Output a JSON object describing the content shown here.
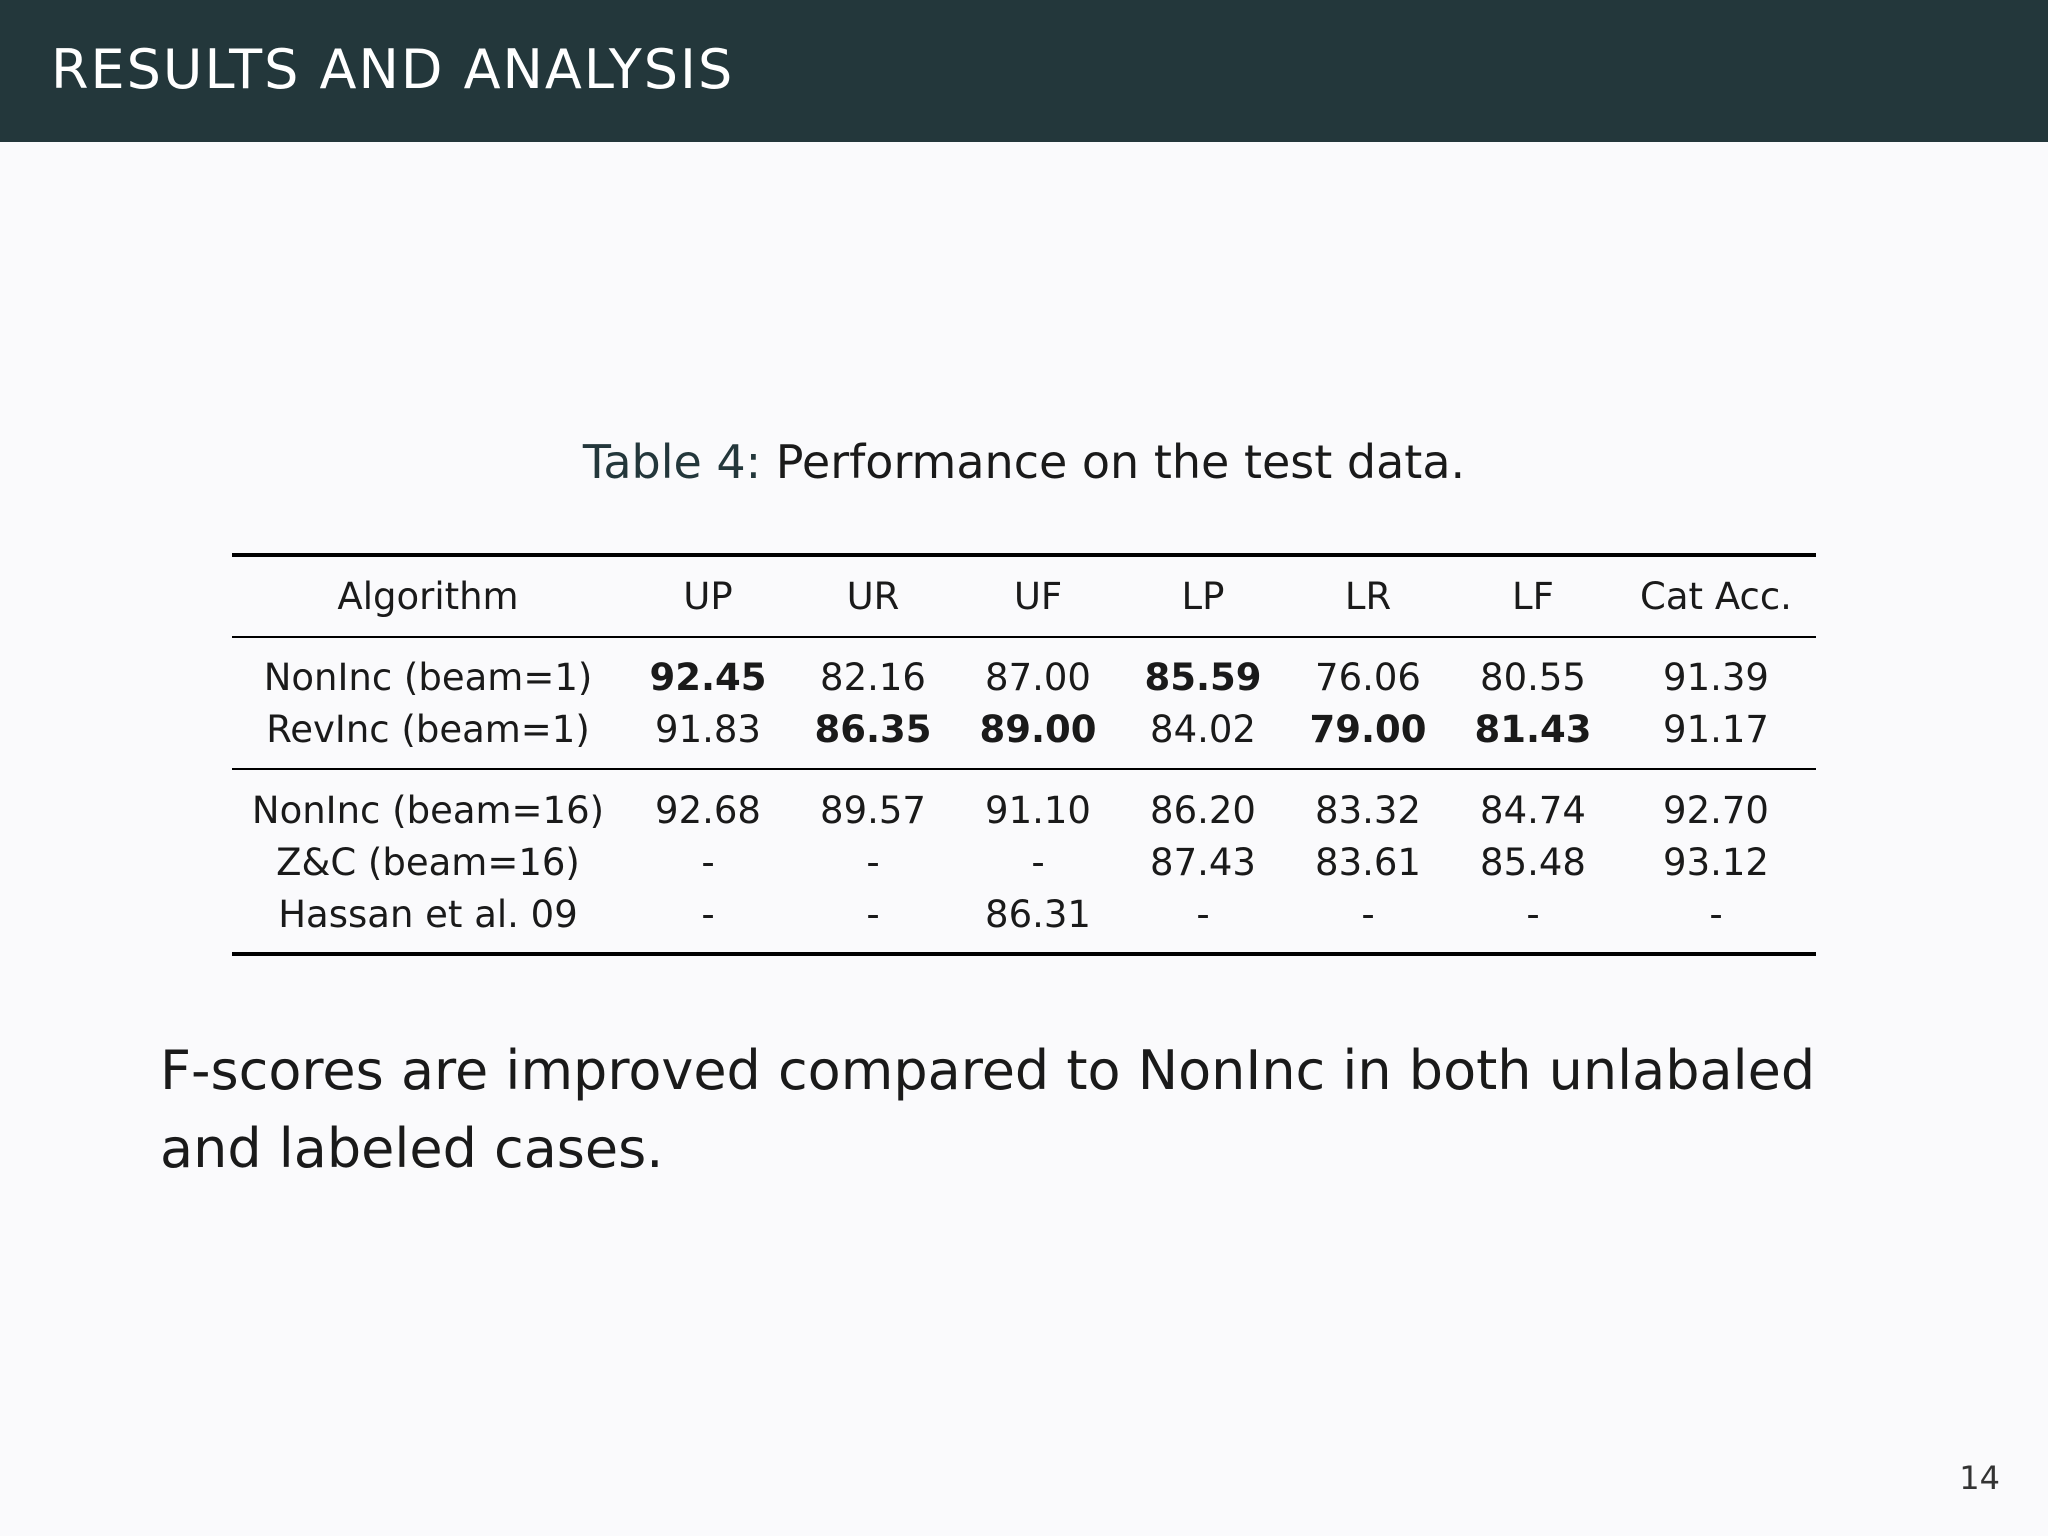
{
  "header": {
    "title": "RESULTS AND ANALYSIS"
  },
  "caption": {
    "label": "Table 4:",
    "text": "Performance on the test data."
  },
  "table": {
    "columns": [
      "Algorithm",
      "UP",
      "UR",
      "UF",
      "LP",
      "LR",
      "LF",
      "Cat Acc."
    ],
    "rows": [
      {
        "cells": [
          "NonInc (beam=1)",
          "92.45",
          "82.16",
          "87.00",
          "85.59",
          "76.06",
          "80.55",
          "91.39"
        ],
        "bold": [
          1,
          4
        ]
      },
      {
        "cells": [
          "RevInc (beam=1)",
          "91.83",
          "86.35",
          "89.00",
          "84.02",
          "79.00",
          "81.43",
          "91.17"
        ],
        "bold": [
          2,
          3,
          5,
          6
        ]
      },
      {
        "cells": [
          "NonInc (beam=16)",
          "92.68",
          "89.57",
          "91.10",
          "86.20",
          "83.32",
          "84.74",
          "92.70"
        ],
        "bold": []
      },
      {
        "cells": [
          "Z&C (beam=16)",
          "-",
          "-",
          "-",
          "87.43",
          "83.61",
          "85.48",
          "93.12"
        ],
        "bold": []
      },
      {
        "cells": [
          "Hassan et al. 09",
          "-",
          "-",
          "86.31",
          "-",
          "-",
          "-",
          "-"
        ],
        "bold": []
      }
    ]
  },
  "body_text": "F-scores are improved compared to NonInc in both unlabaled and labeled cases.",
  "page_number": "14"
}
